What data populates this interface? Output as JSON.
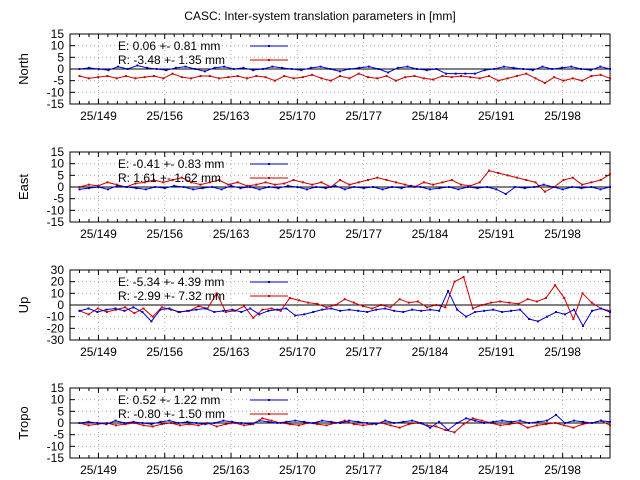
{
  "chart_data": {
    "type": "line",
    "title": "CASC: Inter-system translation parameters in [mm]",
    "x_range": [
      146,
      203
    ],
    "x_ticks": [
      149,
      156,
      163,
      170,
      177,
      184,
      191,
      198
    ],
    "x_tick_labels": [
      "25/149",
      "25/156",
      "25/163",
      "25/170",
      "25/177",
      "25/184",
      "25/191",
      "25/198"
    ],
    "grid": true,
    "colors": {
      "E": "#0000cc",
      "R": "#cc0000"
    },
    "panels": [
      {
        "ylabel": "North",
        "ylim": [
          -15,
          15
        ],
        "y_ticks": [
          -15,
          -10,
          -5,
          0,
          5,
          10,
          15
        ],
        "series": [
          {
            "name": "E",
            "legend": "E:   0.06 +- 0.81 mm",
            "values": [
              0,
              0.5,
              0,
              -0.5,
              1,
              0,
              1.5,
              0.5,
              0,
              -0.5,
              0.5,
              1,
              0,
              -1,
              0.5,
              1,
              0,
              0.5,
              -0.5,
              0,
              1,
              0.5,
              0,
              -0.5,
              0.5,
              1,
              0,
              -1,
              0,
              0.5,
              1,
              0,
              -1.5,
              0.5,
              1,
              0,
              -0.5,
              0,
              -2,
              -2,
              -2,
              -2,
              -0.5,
              0,
              1,
              0.5,
              0,
              -0.5,
              1,
              0,
              0.5,
              1,
              0,
              -0.5,
              1,
              0
            ]
          },
          {
            "name": "R",
            "legend": "R:  -3.48 +- 1.35 mm",
            "values": [
              -3,
              -4,
              -3.5,
              -3,
              -4,
              -3,
              -4,
              -3.5,
              -3,
              -4,
              -2,
              -3.5,
              -4,
              -3,
              -3,
              -4,
              -3.5,
              -3,
              -4,
              -3,
              -3.5,
              -5,
              -3,
              -4,
              -3.5,
              -2.5,
              -4,
              -5,
              -3,
              -4,
              -2,
              -3.5,
              -4,
              -3,
              -5,
              -3.5,
              -3,
              -4,
              -4.5,
              -3,
              -3.5,
              -3,
              -3.5,
              -4,
              -3,
              -5,
              -4,
              -3,
              -2,
              -4,
              -6,
              -3.5,
              -5,
              -4,
              -5,
              -3,
              -2.5,
              -4
            ]
          }
        ]
      },
      {
        "ylabel": "East",
        "ylim": [
          -15,
          15
        ],
        "y_ticks": [
          -15,
          -10,
          -5,
          0,
          5,
          10,
          15
        ],
        "series": [
          {
            "name": "E",
            "legend": "E:  -0.41 +- 0.83 mm",
            "values": [
              -1,
              -0.5,
              0,
              -1,
              0.5,
              0,
              -0.5,
              -1,
              0,
              -0.5,
              0.5,
              0,
              -1,
              -0.5,
              0,
              -1,
              0.5,
              -0.5,
              0,
              -1,
              0,
              -0.5,
              0.5,
              0,
              -1,
              0,
              -0.5,
              0.5,
              -1,
              0,
              -0.5,
              0,
              -1,
              0,
              -0.5,
              0.5,
              0,
              -1,
              -0.5,
              0,
              -1,
              0,
              -0.5,
              0,
              -1,
              -3,
              0,
              -0.5,
              0,
              1,
              0,
              -1,
              0,
              -0.5,
              0,
              -1,
              0
            ]
          },
          {
            "name": "R",
            "legend": "R:   1.61 +- 1.62 mm",
            "values": [
              0,
              1,
              0.5,
              2,
              1,
              0,
              1.5,
              2,
              3,
              2,
              3,
              4,
              2,
              1,
              2,
              3,
              1,
              2,
              0.5,
              1,
              2,
              1,
              1.5,
              3,
              2,
              1,
              2,
              0,
              3,
              1,
              2,
              3,
              4,
              3,
              2,
              1,
              0,
              2,
              1,
              2,
              3,
              1,
              0.5,
              2,
              7,
              6,
              5,
              4,
              3,
              2,
              -2,
              0,
              3,
              4,
              1,
              2,
              3,
              5.5
            ]
          }
        ]
      },
      {
        "ylabel": "Up",
        "ylim": [
          -30,
          30
        ],
        "y_ticks": [
          -30,
          -20,
          -10,
          0,
          10,
          20,
          30
        ],
        "series": [
          {
            "name": "E",
            "legend": "E:  -5.34 +- 4.39 mm",
            "values": [
              -5,
              -3,
              -6,
              -4,
              -3,
              -5,
              -2,
              -6,
              -14,
              -4,
              -3,
              -6,
              -5,
              -4,
              -3,
              -6,
              -5,
              -4,
              -6,
              -3,
              -8,
              -5,
              -4,
              -3,
              -9,
              -8,
              -6,
              -4,
              -3,
              -5,
              -4,
              -5,
              -6,
              -4,
              -3,
              -5,
              -6,
              -4,
              -5,
              -4,
              -5,
              12,
              -4,
              -10,
              -6,
              -5,
              -4,
              -6,
              -5,
              -4,
              -12,
              -14,
              -10,
              -6,
              -8,
              -4,
              -18,
              -5,
              -3,
              -6
            ]
          },
          {
            "name": "R",
            "legend": "R:  -2.99 +- 7.32 mm",
            "values": [
              -5,
              -8,
              -3,
              -6,
              -4,
              -2,
              -7,
              -3,
              -10,
              -2,
              -4,
              -6,
              -5,
              -1,
              -3,
              10,
              -6,
              -5,
              -1,
              -11,
              -4,
              -3,
              -5,
              6,
              4,
              2,
              1,
              -2,
              0,
              5,
              2,
              -1,
              -3,
              0,
              -2,
              5,
              2,
              3,
              -2,
              0,
              -2,
              20,
              24,
              -3,
              0,
              2,
              3,
              2,
              1,
              5,
              3,
              6,
              17,
              6,
              -12,
              10,
              2,
              -3,
              -5
            ]
          }
        ]
      },
      {
        "ylabel": "Tropo",
        "ylim": [
          -15,
          15
        ],
        "y_ticks": [
          -15,
          -10,
          -5,
          0,
          5,
          10,
          15
        ],
        "series": [
          {
            "name": "E",
            "legend": "E:   0.52 +- 1.22 mm",
            "values": [
              0,
              0.5,
              0,
              -0.5,
              1,
              0,
              0.5,
              0,
              -0.5,
              0.5,
              1,
              0,
              0.5,
              0,
              -0.5,
              0,
              1,
              0.5,
              0,
              -0.5,
              1,
              0.5,
              0,
              0.5,
              1,
              0.5,
              0,
              1,
              0.5,
              0,
              1,
              0.5,
              0,
              -0.5,
              1,
              0,
              0.5,
              1,
              0,
              -2,
              0.5,
              -3,
              0,
              2,
              1,
              0,
              0.5,
              1,
              0.5,
              1,
              0,
              0.5,
              1,
              3.5,
              0,
              1,
              0.5,
              0,
              1,
              0.5
            ]
          },
          {
            "name": "R",
            "legend": "R:  -0.80 +- 1.50 mm",
            "values": [
              0,
              -1,
              -0.5,
              0,
              -1,
              -0.5,
              0,
              -1,
              -1.5,
              -0.5,
              0,
              -1,
              -0.5,
              -1,
              0,
              -1.5,
              -0.5,
              0,
              -1,
              -0.5,
              2,
              1,
              0,
              -0.5,
              -1,
              0,
              -0.5,
              -1,
              0,
              1,
              -0.5,
              -1,
              -0.5,
              0,
              -1,
              -2,
              -0.5,
              0,
              -1,
              -1.5,
              -3,
              -4,
              -0.5,
              2,
              1,
              0,
              -1,
              -0.5,
              0,
              -2,
              -1,
              -0.5,
              0,
              -1,
              -2,
              -0.5,
              0,
              1,
              -1
            ]
          }
        ]
      }
    ]
  }
}
